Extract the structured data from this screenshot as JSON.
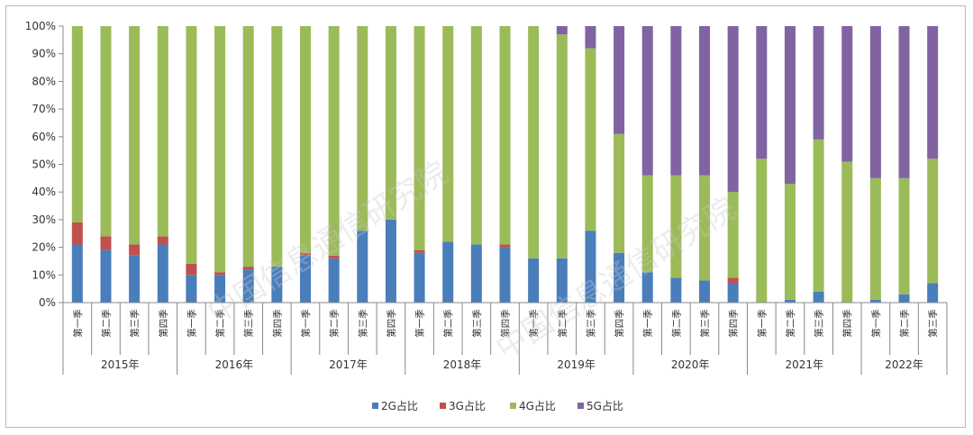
{
  "chart_data": {
    "type": "bar",
    "stacked": true,
    "percent_stacked": true,
    "ylim": [
      0,
      100
    ],
    "y_ticks": [
      "0%",
      "10%",
      "20%",
      "30%",
      "40%",
      "50%",
      "60%",
      "70%",
      "80%",
      "90%",
      "100%"
    ],
    "grid": false,
    "legend_position": "bottom",
    "years": [
      "2015年",
      "2016年",
      "2017年",
      "2018年",
      "2019年",
      "2020年",
      "2021年",
      "2022年"
    ],
    "quarters": [
      "第一季",
      "第二季",
      "第三季",
      "第四季"
    ],
    "quarters_per_year": [
      4,
      4,
      4,
      4,
      4,
      4,
      4,
      3
    ],
    "series": [
      {
        "name": "2G占比",
        "color": "#4a7ebb",
        "values": [
          21,
          19,
          17,
          21,
          10,
          10,
          12,
          13,
          17,
          16,
          26,
          30,
          18,
          22,
          21,
          20,
          16,
          16,
          26,
          18,
          11,
          9,
          8,
          7,
          0,
          1,
          4,
          0,
          1,
          3,
          7
        ]
      },
      {
        "name": "3G占比",
        "color": "#c0504d",
        "values": [
          8,
          5,
          4,
          3,
          4,
          1,
          1,
          0,
          1,
          1,
          0,
          0,
          1,
          0,
          0,
          1,
          0,
          0,
          0,
          0,
          0,
          0,
          0,
          2,
          0,
          0,
          0,
          0,
          0,
          0,
          0
        ]
      },
      {
        "name": "4G占比",
        "color": "#9bbb59",
        "values": [
          71,
          76,
          79,
          76,
          86,
          89,
          87,
          87,
          82,
          83,
          74,
          70,
          81,
          78,
          79,
          79,
          84,
          81,
          66,
          43,
          35,
          37,
          38,
          31,
          52,
          42,
          55,
          51,
          44,
          42,
          45
        ]
      },
      {
        "name": "5G占比",
        "color": "#8064a2",
        "values": [
          0,
          0,
          0,
          0,
          0,
          0,
          0,
          0,
          0,
          0,
          0,
          0,
          0,
          0,
          0,
          0,
          0,
          3,
          8,
          39,
          54,
          54,
          54,
          60,
          48,
          57,
          41,
          49,
          55,
          55,
          48
        ]
      }
    ]
  },
  "watermark_text": "中国信息通信研究院"
}
